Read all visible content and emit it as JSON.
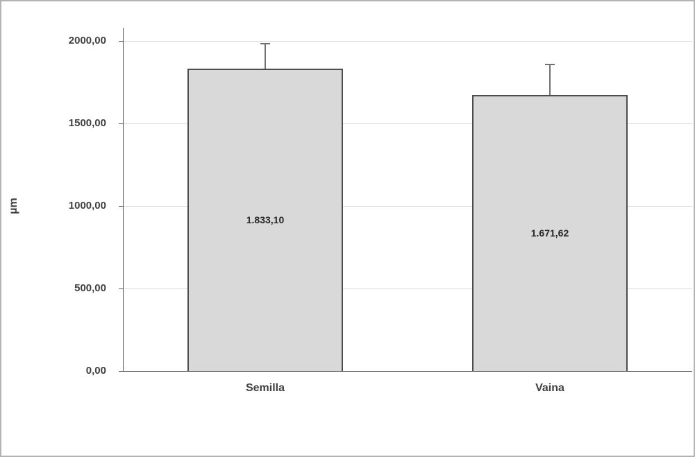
{
  "chart_data": {
    "type": "bar",
    "title": "",
    "xlabel": "",
    "ylabel": "µm",
    "categories": [
      "Semilla",
      "Vaina"
    ],
    "values": [
      1833.1,
      1671.62
    ],
    "value_labels": [
      "1.833,10",
      "1.671,62"
    ],
    "error_upper": [
      155,
      190
    ],
    "ylim": [
      0,
      2000
    ],
    "ytick_step": 500,
    "ytick_labels": [
      "0,00",
      "500,00",
      "1000,00",
      "1500,00",
      "2000,00"
    ],
    "grid": true,
    "legend": false,
    "colors": {
      "bar_fill": "#d9d9d9",
      "bar_border": "#4d4d4d",
      "gridline": "#d9d9d9",
      "axis": "#595959",
      "error_bar": "#707070",
      "text": "#404040"
    }
  }
}
